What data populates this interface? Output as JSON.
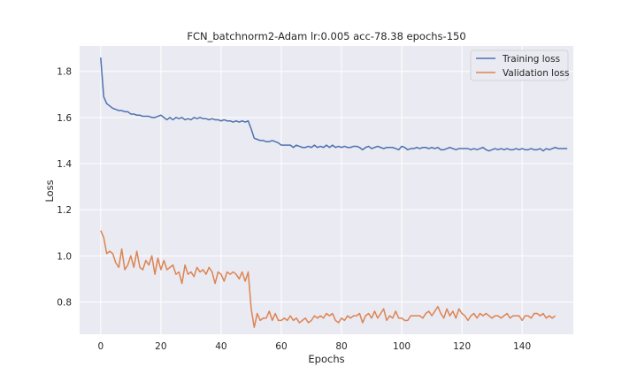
{
  "chart_data": {
    "type": "line",
    "title": "FCN_batchnorm2-Adam lr:0.005 acc-78.38 epochs-150",
    "xlabel": "Epochs",
    "ylabel": "Loss",
    "xlim": [
      -7,
      157
    ],
    "ylim": [
      0.66,
      1.91
    ],
    "xticks": [
      "0",
      "20",
      "40",
      "60",
      "80",
      "100",
      "120",
      "140"
    ],
    "yticks": [
      "0.8",
      "1.0",
      "1.2",
      "1.4",
      "1.6",
      "1.8"
    ],
    "grid": true,
    "legend": "top-right",
    "series": [
      {
        "name": "Training loss",
        "color": "#4c72b0",
        "x_start": 0,
        "values": [
          1.86,
          1.69,
          1.66,
          1.65,
          1.64,
          1.635,
          1.63,
          1.63,
          1.625,
          1.625,
          1.615,
          1.615,
          1.61,
          1.61,
          1.605,
          1.605,
          1.605,
          1.6,
          1.6,
          1.605,
          1.61,
          1.6,
          1.59,
          1.6,
          1.59,
          1.6,
          1.595,
          1.6,
          1.59,
          1.595,
          1.59,
          1.6,
          1.595,
          1.6,
          1.595,
          1.595,
          1.59,
          1.595,
          1.59,
          1.59,
          1.585,
          1.59,
          1.585,
          1.585,
          1.58,
          1.585,
          1.58,
          1.585,
          1.58,
          1.585,
          1.55,
          1.51,
          1.505,
          1.5,
          1.5,
          1.495,
          1.495,
          1.5,
          1.495,
          1.49,
          1.48,
          1.48,
          1.48,
          1.48,
          1.47,
          1.48,
          1.475,
          1.47,
          1.47,
          1.475,
          1.47,
          1.48,
          1.47,
          1.475,
          1.47,
          1.48,
          1.47,
          1.48,
          1.47,
          1.475,
          1.47,
          1.475,
          1.47,
          1.47,
          1.475,
          1.475,
          1.47,
          1.46,
          1.47,
          1.475,
          1.465,
          1.47,
          1.475,
          1.47,
          1.465,
          1.47,
          1.47,
          1.47,
          1.465,
          1.46,
          1.475,
          1.47,
          1.46,
          1.465,
          1.465,
          1.47,
          1.465,
          1.47,
          1.47,
          1.465,
          1.47,
          1.465,
          1.47,
          1.46,
          1.46,
          1.465,
          1.47,
          1.465,
          1.46,
          1.465,
          1.465,
          1.465,
          1.465,
          1.46,
          1.465,
          1.46,
          1.465,
          1.47,
          1.46,
          1.455,
          1.46,
          1.465,
          1.46,
          1.465,
          1.46,
          1.465,
          1.46,
          1.46,
          1.465,
          1.46,
          1.465,
          1.46,
          1.46,
          1.465,
          1.46,
          1.46,
          1.465,
          1.455,
          1.465,
          1.46,
          1.465,
          1.47,
          1.465,
          1.465,
          1.465,
          1.465
        ]
      },
      {
        "name": "Validation loss",
        "color": "#dd8452",
        "x_start": 0,
        "values": [
          1.11,
          1.08,
          1.01,
          1.02,
          1.01,
          0.97,
          0.95,
          1.03,
          0.94,
          0.96,
          1.0,
          0.95,
          1.02,
          0.95,
          0.94,
          0.98,
          0.96,
          1.0,
          0.92,
          0.99,
          0.94,
          0.98,
          0.94,
          0.95,
          0.96,
          0.92,
          0.93,
          0.88,
          0.96,
          0.92,
          0.93,
          0.91,
          0.95,
          0.93,
          0.94,
          0.92,
          0.95,
          0.93,
          0.88,
          0.93,
          0.92,
          0.89,
          0.93,
          0.92,
          0.93,
          0.92,
          0.9,
          0.93,
          0.89,
          0.93,
          0.77,
          0.69,
          0.75,
          0.72,
          0.73,
          0.73,
          0.76,
          0.72,
          0.75,
          0.72,
          0.72,
          0.73,
          0.72,
          0.74,
          0.72,
          0.73,
          0.71,
          0.72,
          0.73,
          0.71,
          0.72,
          0.74,
          0.73,
          0.74,
          0.73,
          0.75,
          0.74,
          0.75,
          0.72,
          0.71,
          0.73,
          0.72,
          0.74,
          0.73,
          0.74,
          0.74,
          0.75,
          0.71,
          0.74,
          0.75,
          0.73,
          0.76,
          0.73,
          0.75,
          0.77,
          0.72,
          0.74,
          0.73,
          0.76,
          0.73,
          0.73,
          0.72,
          0.72,
          0.74,
          0.74,
          0.74,
          0.74,
          0.73,
          0.75,
          0.76,
          0.74,
          0.76,
          0.78,
          0.75,
          0.73,
          0.77,
          0.74,
          0.76,
          0.73,
          0.77,
          0.75,
          0.74,
          0.72,
          0.74,
          0.75,
          0.73,
          0.75,
          0.74,
          0.75,
          0.74,
          0.73,
          0.74,
          0.74,
          0.73,
          0.74,
          0.75,
          0.73,
          0.74,
          0.74,
          0.74,
          0.72,
          0.74,
          0.74,
          0.73,
          0.75,
          0.75,
          0.74,
          0.75,
          0.73,
          0.74,
          0.73,
          0.74
        ]
      }
    ]
  }
}
